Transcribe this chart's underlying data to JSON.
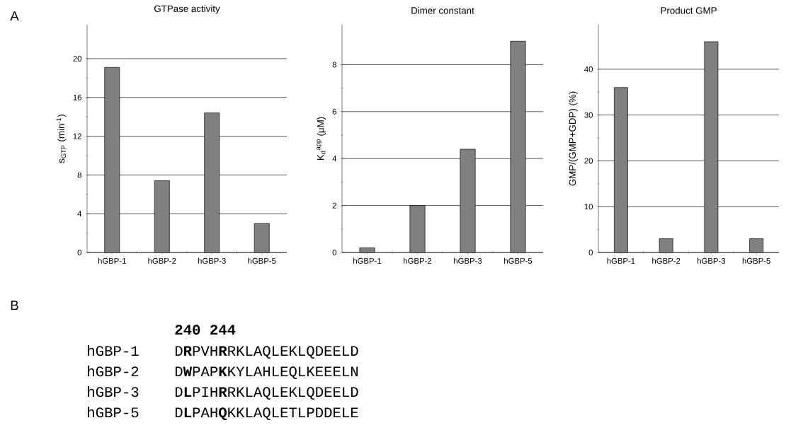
{
  "chart_data": [
    {
      "type": "bar",
      "title": "GTPase activity",
      "ylabel": "s$_{GTP}$ (min$^{-1}$)",
      "categories": [
        "hGBP-1",
        "hGBP-2",
        "hGBP-3",
        "hGBP-5"
      ],
      "values": [
        19.1,
        7.4,
        14.4,
        3.0
      ],
      "color": "#808080",
      "ylim": [
        0,
        23.5
      ],
      "yticks": [
        0,
        4,
        8,
        12,
        16,
        20
      ],
      "grid": "y",
      "annotations": [
        "A"
      ]
    },
    {
      "type": "bar",
      "title": "Dimer constant",
      "ylabel": "K$_{d}$$^{app}$ (μM)",
      "categories": [
        "hGBP-1",
        "hGBP-2",
        "hGBP-3",
        "hGBP-5"
      ],
      "values": [
        0.2,
        2.0,
        4.4,
        9.0
      ],
      "color": "#808080",
      "ylim": [
        0,
        9.7
      ],
      "yticks": [
        0,
        2,
        4,
        6,
        8
      ],
      "grid": "y"
    },
    {
      "type": "bar",
      "title": "Product GMP",
      "ylabel": "GMP/(GMP+GDP) (%)",
      "categories": [
        "hGBP-1",
        "hGBP-2",
        "hGBP-3",
        "hGBP-5"
      ],
      "values": [
        36,
        3,
        46,
        3
      ],
      "color": "#808080",
      "ylim": [
        0,
        49.7
      ],
      "yticks": [
        0,
        10,
        20,
        30,
        40
      ],
      "grid": "y"
    },
    {
      "type": "other",
      "annotations": [
        "B",
        "240 244",
        "hGBP-1",
        "D**R**PVH**R**RKLAQLEKLQDEELD",
        "hGBP-2",
        "D**W**PAP**K**KYLAHLEQLKEEELN",
        "hGBP-3",
        "D**L**PIH**R**RKLAQLEKLQDEELD",
        "hGBP-5",
        "D**L**PAH**Q**KKLAQLETLPDDELE"
      ]
    }
  ]
}
